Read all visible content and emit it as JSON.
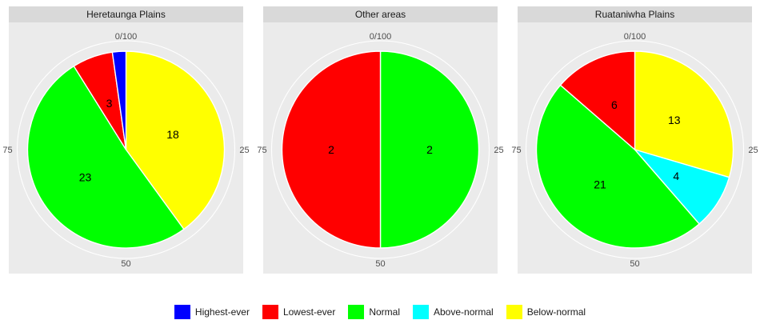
{
  "chart_data": {
    "type": "pie",
    "legend_position": "bottom",
    "grid": true,
    "axis_ticks": [
      "0/100",
      "25",
      "50",
      "75"
    ],
    "legend": [
      {
        "label": "Highest-ever",
        "color": "#0000FF"
      },
      {
        "label": "Lowest-ever",
        "color": "#FF0000"
      },
      {
        "label": "Normal",
        "color": "#00FF00"
      },
      {
        "label": "Above-normal",
        "color": "#00FFFF"
      },
      {
        "label": "Below-normal",
        "color": "#FFFF00"
      }
    ],
    "panels": [
      {
        "title": "Heretaunga Plains",
        "slices": [
          {
            "category": "Below-normal",
            "value": 18,
            "label": "18"
          },
          {
            "category": "Normal",
            "value": 23,
            "label": "23"
          },
          {
            "category": "Lowest-ever",
            "value": 3,
            "label": "3"
          },
          {
            "category": "Highest-ever",
            "value": 1,
            "label": ""
          }
        ]
      },
      {
        "title": "Other areas",
        "slices": [
          {
            "category": "Normal",
            "value": 2,
            "label": "2"
          },
          {
            "category": "Lowest-ever",
            "value": 2,
            "label": "2"
          }
        ]
      },
      {
        "title": "Ruataniwha Plains",
        "slices": [
          {
            "category": "Below-normal",
            "value": 13,
            "label": "13"
          },
          {
            "category": "Above-normal",
            "value": 4,
            "label": "4"
          },
          {
            "category": "Normal",
            "value": 21,
            "label": "21"
          },
          {
            "category": "Lowest-ever",
            "value": 6,
            "label": "6"
          }
        ]
      }
    ]
  }
}
